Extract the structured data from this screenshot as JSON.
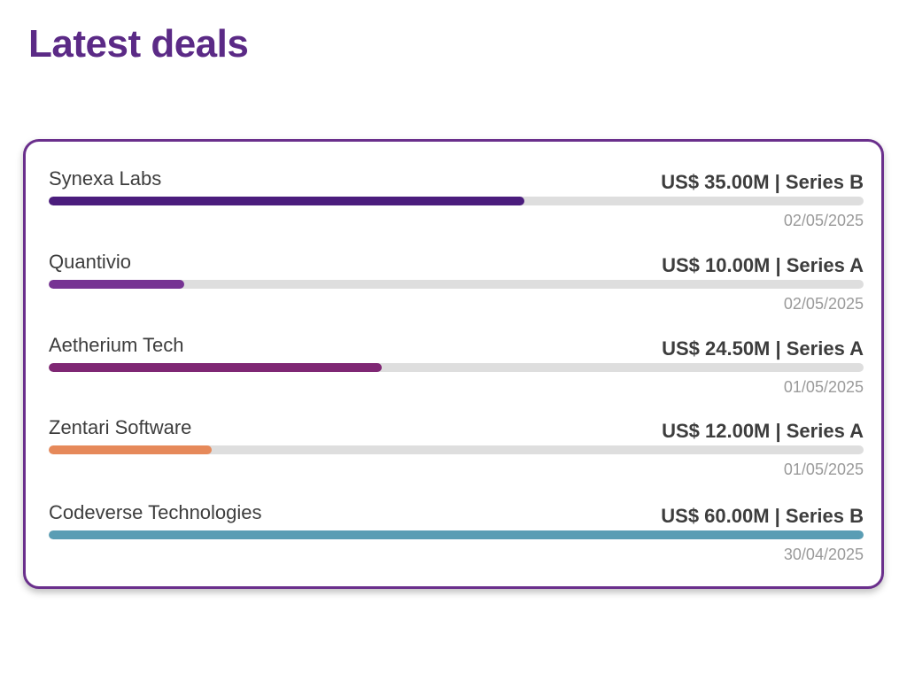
{
  "page": {
    "title": "Latest deals"
  },
  "deals": [
    {
      "company": "Synexa Labs",
      "amount_label": "US$ 35.00M | Series B",
      "date": "02/05/2025",
      "amount_musd": 35.0,
      "color": "#4b1d7d"
    },
    {
      "company": "Quantivio",
      "amount_label": "US$ 10.00M | Series A",
      "date": "02/05/2025",
      "amount_musd": 10.0,
      "color": "#763393"
    },
    {
      "company": "Aetherium Tech",
      "amount_label": "US$ 24.50M | Series A",
      "date": "01/05/2025",
      "amount_musd": 24.5,
      "color": "#7f2774"
    },
    {
      "company": "Zentari Software",
      "amount_label": "US$ 12.00M | Series A",
      "date": "01/05/2025",
      "amount_musd": 12.0,
      "color": "#e6895a"
    },
    {
      "company": "Codeverse Technologies",
      "amount_label": "US$ 60.00M | Series B",
      "date": "30/04/2025",
      "amount_musd": 60.0,
      "color": "#5a9db4"
    }
  ],
  "scale_max_musd": 60.0
}
